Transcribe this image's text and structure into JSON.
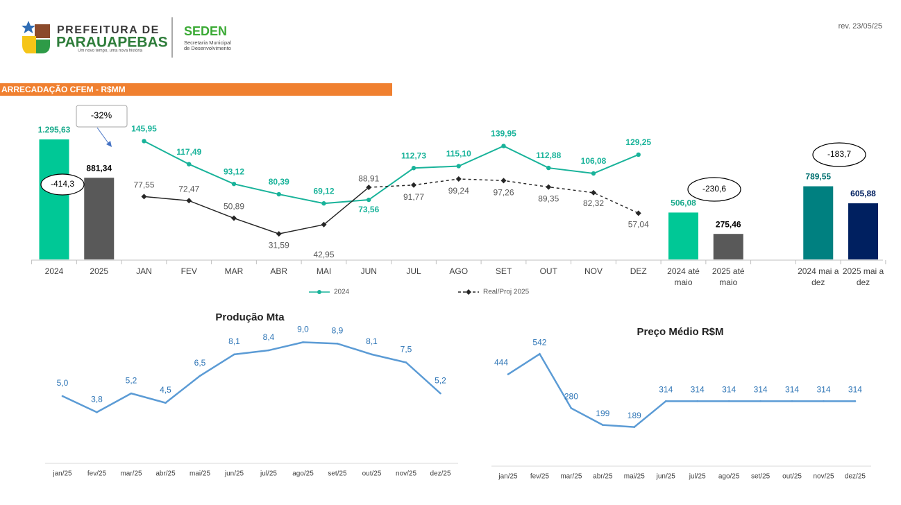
{
  "header": {
    "logo_line1": "PREFEITURA DE",
    "logo_line2": "PARAUAPEBAS",
    "logo_tagline": "Um novo tempo, uma nova história",
    "dept": "SEDEN",
    "dept_sub1": "Secretaria Municipal",
    "dept_sub2": "de Desenvolvimento",
    "revision": "rev. 23/05/25"
  },
  "chart_data": [
    {
      "type": "combo",
      "title": "ARRECADAÇÃO CFEM - R$MM",
      "categories": [
        "2024",
        "2025",
        "JAN",
        "FEV",
        "MAR",
        "ABR",
        "MAI",
        "JUN",
        "JUL",
        "AGO",
        "SET",
        "OUT",
        "NOV",
        "DEZ",
        "2024 até maio",
        "2025 até maio",
        null,
        "2024 mai a dez",
        "2025 mai a dez"
      ],
      "ylim": [
        0,
        1400
      ],
      "y2lim": [
        0,
        160
      ],
      "bars": {
        "values": [
          1295.63,
          881.34,
          null,
          null,
          null,
          null,
          null,
          null,
          null,
          null,
          null,
          null,
          null,
          null,
          506.08,
          275.46,
          null,
          789.55,
          605.88
        ],
        "value_labels": [
          "1.295,63",
          "881,34",
          null,
          null,
          null,
          null,
          null,
          null,
          null,
          null,
          null,
          null,
          null,
          null,
          "506,08",
          "275,46",
          null,
          "789,55",
          "605,88"
        ],
        "colors": [
          "#00C896",
          "#595959",
          null,
          null,
          null,
          null,
          null,
          null,
          null,
          null,
          null,
          null,
          null,
          null,
          "#00C896",
          "#595959",
          null,
          "#008080",
          "#002060"
        ],
        "label_colors": [
          "#17A98A",
          "#000000",
          null,
          null,
          null,
          null,
          null,
          null,
          null,
          null,
          null,
          null,
          null,
          null,
          "#17A98A",
          "#000000",
          null,
          "#007070",
          "#002060"
        ]
      },
      "series": [
        {
          "name": "2024",
          "color": "#19B39A",
          "label_color": "#19B39A",
          "axis": "y2",
          "values": [
            null,
            null,
            145.95,
            117.49,
            93.12,
            80.39,
            69.12,
            73.56,
            112.73,
            115.1,
            139.95,
            112.88,
            106.08,
            129.25,
            null,
            null,
            null,
            null,
            null
          ],
          "value_labels": [
            null,
            null,
            "145,95",
            "117,49",
            "93,12",
            "80,39",
            "69,12",
            "73,56",
            "112,73",
            "115,10",
            "139,95",
            "112,88",
            "106,08",
            "129,25",
            null,
            null,
            null,
            null,
            null
          ]
        },
        {
          "name": "Real/Proj 2025",
          "color": "#262626",
          "label_color": "#595959",
          "axis": "y2",
          "dashed_from": "JUN",
          "values": [
            null,
            null,
            77.55,
            72.47,
            50.89,
            31.59,
            42.95,
            88.91,
            91.77,
            99.24,
            97.26,
            89.35,
            82.32,
            57.04,
            null,
            null,
            null,
            null,
            null
          ],
          "value_labels": [
            null,
            null,
            "77,55",
            "72,47",
            "50,89",
            "31,59",
            "42,95",
            "88,91",
            "91,77",
            "99,24",
            "97,26",
            "89,35",
            "82,32",
            "57,04",
            null,
            null,
            null,
            null,
            null
          ]
        }
      ],
      "annotations": [
        "-32%",
        "-414,3",
        "-230,6",
        "-183,7"
      ]
    },
    {
      "type": "line",
      "title": "Produção Mta",
      "categories": [
        "jan/25",
        "fev/25",
        "mar/25",
        "abr/25",
        "mai/25",
        "jun/25",
        "jul/25",
        "ago/25",
        "set/25",
        "out/25",
        "nov/25",
        "dez/25"
      ],
      "values": [
        5.0,
        3.8,
        5.2,
        4.5,
        6.5,
        8.1,
        8.4,
        9.0,
        8.9,
        8.1,
        7.5,
        5.2
      ],
      "value_labels": [
        "5,0",
        "3,8",
        "5,2",
        "4,5",
        "6,5",
        "8,1",
        "8,4",
        "9,0",
        "8,9",
        "8,1",
        "7,5",
        "5,2"
      ],
      "color": "#5B9BD5",
      "ylim": [
        0,
        10
      ]
    },
    {
      "type": "line",
      "title": "Preço Médio  R$M",
      "categories": [
        "jan/25",
        "fev/25",
        "mar/25",
        "abr/25",
        "mai/25",
        "jun/25",
        "jul/25",
        "ago/25",
        "set/25",
        "out/25",
        "nov/25",
        "dez/25"
      ],
      "values": [
        444,
        542,
        280,
        199,
        189,
        314,
        314,
        314,
        314,
        314,
        314,
        314
      ],
      "color": "#5B9BD5",
      "ylim": [
        0,
        600
      ]
    }
  ]
}
